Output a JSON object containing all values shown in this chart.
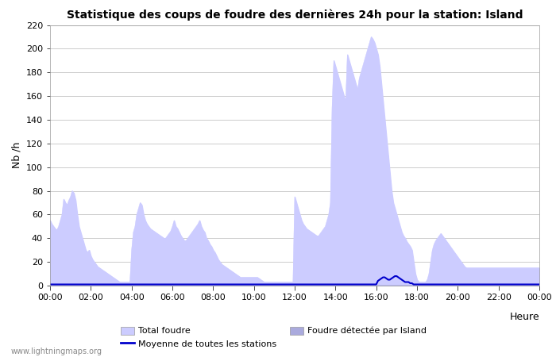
{
  "title": "Statistique des coups de foudre des dernières 24h pour la station: Island",
  "ylabel": "Nb /h",
  "xlabel": "Heure",
  "watermark": "www.lightningmaps.org",
  "ylim": [
    0,
    220
  ],
  "xlim": [
    0,
    288
  ],
  "yticks": [
    0,
    20,
    40,
    60,
    80,
    100,
    120,
    140,
    160,
    180,
    200,
    220
  ],
  "xtick_labels": [
    "00:00",
    "02:00",
    "04:00",
    "06:00",
    "08:00",
    "10:00",
    "12:00",
    "14:00",
    "16:00",
    "18:00",
    "20:00",
    "22:00",
    "00:00"
  ],
  "xtick_positions": [
    0,
    24,
    48,
    72,
    96,
    120,
    144,
    168,
    192,
    216,
    240,
    264,
    288
  ],
  "color_total": "#ccccff",
  "color_island": "#aaaadd",
  "color_mean": "#0000cc",
  "legend_labels": [
    "Total foudre",
    "Foudre détectée par Island",
    "Moyenne de toutes les stations"
  ],
  "total_foudre": [
    55,
    52,
    50,
    48,
    47,
    50,
    55,
    60,
    73,
    70,
    68,
    72,
    75,
    80,
    78,
    72,
    60,
    50,
    45,
    40,
    35,
    30,
    28,
    30,
    25,
    22,
    20,
    18,
    16,
    15,
    14,
    13,
    12,
    11,
    10,
    9,
    8,
    7,
    6,
    5,
    4,
    3,
    3,
    3,
    3,
    3,
    3,
    3,
    30,
    45,
    50,
    60,
    65,
    70,
    68,
    60,
    55,
    52,
    50,
    48,
    47,
    46,
    45,
    44,
    43,
    42,
    41,
    40,
    40,
    42,
    44,
    46,
    50,
    55,
    50,
    48,
    45,
    42,
    40,
    38,
    38,
    40,
    42,
    44,
    46,
    48,
    50,
    52,
    55,
    50,
    47,
    45,
    40,
    38,
    35,
    33,
    30,
    28,
    25,
    22,
    20,
    18,
    17,
    16,
    15,
    14,
    13,
    12,
    11,
    10,
    9,
    8,
    7,
    7,
    7,
    7,
    7,
    7,
    7,
    7,
    7,
    7,
    7,
    6,
    5,
    4,
    3,
    3,
    3,
    3,
    3,
    3,
    3,
    3,
    3,
    3,
    3,
    3,
    3,
    3,
    3,
    3,
    3,
    3,
    75,
    70,
    65,
    60,
    55,
    52,
    50,
    48,
    47,
    46,
    45,
    44,
    43,
    42,
    42,
    44,
    46,
    48,
    50,
    55,
    60,
    70,
    150,
    190,
    185,
    180,
    175,
    170,
    165,
    160,
    155,
    195,
    190,
    185,
    180,
    175,
    170,
    165,
    175,
    180,
    185,
    190,
    195,
    200,
    205,
    210,
    208,
    205,
    200,
    195,
    185,
    170,
    155,
    140,
    125,
    110,
    95,
    80,
    70,
    65,
    60,
    55,
    50,
    45,
    42,
    40,
    37,
    35,
    33,
    30,
    20,
    10,
    5,
    3,
    3,
    3,
    3,
    3,
    5,
    10,
    20,
    30,
    35,
    38,
    40,
    42,
    44,
    42,
    40,
    38,
    36,
    34,
    32,
    30,
    28,
    26,
    24,
    22,
    20,
    18,
    16,
    15,
    15,
    15,
    15,
    15,
    15,
    15,
    15,
    15,
    15,
    15,
    15,
    15,
    15,
    15,
    15,
    15,
    15,
    15,
    15,
    15,
    15,
    15,
    15,
    15,
    15,
    15,
    15,
    15,
    15,
    15,
    15,
    15,
    15,
    15,
    15,
    15,
    15,
    15,
    15,
    15,
    15,
    15,
    15
  ],
  "island_foudre": [
    0,
    0,
    0,
    0,
    0,
    0,
    0,
    0,
    0,
    0,
    0,
    0,
    0,
    0,
    0,
    0,
    0,
    0,
    0,
    0,
    0,
    0,
    0,
    0,
    0,
    0,
    0,
    0,
    0,
    0,
    0,
    0,
    0,
    0,
    0,
    0,
    0,
    0,
    0,
    0,
    0,
    0,
    0,
    0,
    0,
    0,
    0,
    0,
    0,
    0,
    0,
    0,
    0,
    0,
    0,
    0,
    0,
    0,
    0,
    0,
    0,
    0,
    0,
    0,
    0,
    0,
    0,
    0,
    0,
    0,
    0,
    0,
    0,
    0,
    0,
    0,
    0,
    0,
    0,
    0,
    0,
    0,
    0,
    0,
    0,
    0,
    0,
    0,
    0,
    0,
    0,
    0,
    0,
    0,
    0,
    0,
    0,
    0,
    0,
    0,
    0,
    0,
    0,
    0,
    0,
    0,
    0,
    0,
    0,
    0,
    0,
    0,
    0,
    0,
    0,
    0,
    0,
    0,
    0,
    0,
    0,
    0,
    0,
    0,
    0,
    0,
    0,
    0,
    0,
    0,
    0,
    0,
    0,
    0,
    0,
    0,
    0,
    0,
    0,
    0,
    0,
    0,
    0,
    0,
    0,
    0,
    0,
    0,
    0,
    0,
    0,
    0,
    0,
    0,
    0,
    0,
    0,
    0,
    0,
    0,
    0,
    0,
    0,
    0,
    0,
    0,
    0,
    0,
    0,
    0,
    0,
    0,
    0,
    0,
    0,
    0,
    0,
    0,
    0,
    0,
    0,
    0,
    0,
    0,
    0,
    0,
    0,
    0,
    0,
    0,
    0,
    0,
    0,
    0,
    0,
    0,
    0,
    0,
    0,
    0,
    0,
    0,
    0,
    0,
    0,
    0,
    0,
    0,
    0,
    0,
    0,
    0,
    0,
    0,
    0,
    0,
    0,
    0,
    0,
    0,
    0,
    0,
    0,
    0,
    0,
    0,
    0,
    0,
    0,
    0,
    0,
    0,
    0,
    0,
    0,
    0,
    0,
    0,
    0,
    0,
    0,
    0,
    0,
    0,
    0,
    0,
    0,
    0,
    0,
    0,
    0,
    0,
    0,
    0,
    0,
    0,
    0,
    0,
    0,
    0,
    0,
    0,
    0,
    0,
    0,
    0,
    0,
    0,
    0,
    0,
    0,
    0,
    0,
    0,
    0,
    0,
    0,
    0,
    0,
    0,
    0,
    0,
    0,
    0,
    0,
    0,
    0,
    0,
    0
  ],
  "mean_foudre": [
    1,
    1,
    1,
    1,
    1,
    1,
    1,
    1,
    1,
    1,
    1,
    1,
    1,
    1,
    1,
    1,
    1,
    1,
    1,
    1,
    1,
    1,
    1,
    1,
    1,
    1,
    1,
    1,
    1,
    1,
    1,
    1,
    1,
    1,
    1,
    1,
    1,
    1,
    1,
    1,
    1,
    1,
    1,
    1,
    1,
    1,
    1,
    1,
    1,
    1,
    1,
    1,
    1,
    1,
    1,
    1,
    1,
    1,
    1,
    1,
    1,
    1,
    1,
    1,
    1,
    1,
    1,
    1,
    1,
    1,
    1,
    1,
    1,
    1,
    1,
    1,
    1,
    1,
    1,
    1,
    1,
    1,
    1,
    1,
    1,
    1,
    1,
    1,
    1,
    1,
    1,
    1,
    1,
    1,
    1,
    1,
    1,
    1,
    1,
    1,
    1,
    1,
    1,
    1,
    1,
    1,
    1,
    1,
    1,
    1,
    1,
    1,
    1,
    1,
    1,
    1,
    1,
    1,
    1,
    1,
    1,
    1,
    1,
    1,
    1,
    1,
    1,
    1,
    1,
    1,
    1,
    1,
    1,
    1,
    1,
    1,
    1,
    1,
    1,
    1,
    1,
    1,
    1,
    1,
    1,
    1,
    1,
    1,
    1,
    1,
    1,
    1,
    1,
    1,
    1,
    1,
    1,
    1,
    1,
    1,
    1,
    1,
    1,
    1,
    1,
    1,
    1,
    1,
    1,
    1,
    1,
    1,
    1,
    1,
    1,
    1,
    1,
    1,
    1,
    1,
    1,
    1,
    1,
    1,
    1,
    1,
    1,
    1,
    1,
    1,
    1,
    1,
    1,
    4,
    5,
    6,
    7,
    7,
    6,
    5,
    5,
    6,
    7,
    8,
    8,
    7,
    6,
    5,
    4,
    3,
    3,
    3,
    2,
    2,
    1,
    1,
    1,
    1,
    1,
    1,
    1,
    1,
    1,
    1,
    1,
    1,
    1,
    1,
    1,
    1,
    1,
    1,
    1,
    1,
    1,
    1,
    1,
    1,
    1,
    1,
    1,
    1,
    1,
    1,
    1,
    1,
    1,
    1,
    1,
    1,
    1,
    1,
    1,
    1,
    1,
    1,
    1,
    1,
    1,
    1,
    1,
    1,
    1,
    1,
    1,
    1,
    1,
    1,
    1,
    1,
    1,
    1,
    1,
    1,
    1,
    1,
    1,
    1,
    1,
    1,
    1,
    1,
    1,
    1,
    1,
    1,
    1,
    1,
    1
  ]
}
